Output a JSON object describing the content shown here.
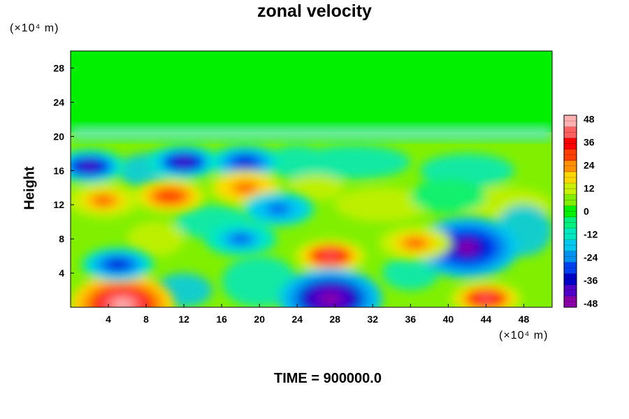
{
  "chart_data": {
    "type": "heatmap",
    "title": "zonal velocity",
    "ylabel": "Height",
    "xlabel": "",
    "x_unit": "(×10⁴ m)",
    "y_unit": "(×10⁴ m)",
    "footer": "TIME = 900000.0",
    "xlim": [
      0,
      51
    ],
    "ylim": [
      0,
      30
    ],
    "x_ticks": [
      "4",
      "8",
      "12",
      "16",
      "20",
      "24",
      "28",
      "32",
      "36",
      "40",
      "44",
      "48"
    ],
    "y_ticks": [
      "4",
      "8",
      "12",
      "16",
      "20",
      "24",
      "28"
    ],
    "colorbar": {
      "min": -50,
      "max": 50,
      "ticks": [
        "48",
        "36",
        "24",
        "12",
        "0",
        "-12",
        "-24",
        "-36",
        "-48"
      ]
    },
    "features": [
      {
        "x": 27.5,
        "y": 6.0,
        "value": 40
      },
      {
        "x": 5.5,
        "y": 0.3,
        "value": 50
      },
      {
        "x": 44.0,
        "y": 1.0,
        "value": 40
      },
      {
        "x": 42.0,
        "y": 7.0,
        "value": -45
      },
      {
        "x": 5.0,
        "y": 5.0,
        "value": -38
      },
      {
        "x": 27.5,
        "y": 1.0,
        "value": -48
      },
      {
        "x": 2.0,
        "y": 16.5,
        "value": -40
      },
      {
        "x": 12.0,
        "y": 17.0,
        "value": -40
      },
      {
        "x": 18.5,
        "y": 17.0,
        "value": -35
      },
      {
        "x": 10.5,
        "y": 13.0,
        "value": 32
      },
      {
        "x": 18.5,
        "y": 14.0,
        "value": 30
      },
      {
        "x": 3.5,
        "y": 12.5,
        "value": 28
      },
      {
        "x": 22.0,
        "y": 11.5,
        "value": -30
      },
      {
        "x": 18.0,
        "y": 8.0,
        "value": -28
      },
      {
        "x": 36.5,
        "y": 7.5,
        "value": 28
      }
    ]
  },
  "colors": {
    "palette": [
      "#8a00a8",
      "#5000c8",
      "#0000c8",
      "#0040f0",
      "#0090f0",
      "#00c8f0",
      "#00e8c0",
      "#00f080",
      "#00f000",
      "#80f000",
      "#c8f000",
      "#ffd800",
      "#ff9000",
      "#ff4000",
      "#ff0000",
      "#ff6060",
      "#ffb0b0"
    ],
    "upper_layer": "#00f000"
  }
}
